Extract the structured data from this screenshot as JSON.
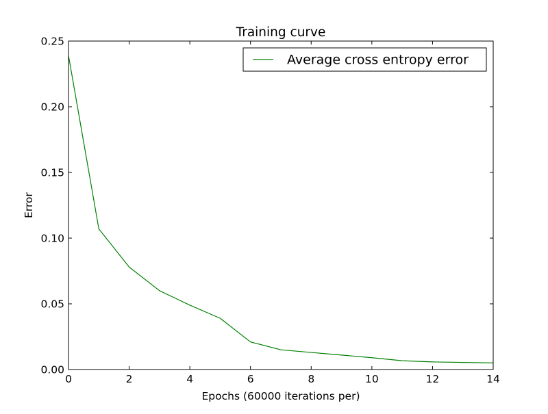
{
  "chart_data": {
    "type": "line",
    "title": "Training curve",
    "xlabel": "Epochs (60000 iterations per)",
    "ylabel": "Error",
    "xlim": [
      0,
      14
    ],
    "ylim": [
      0,
      0.25
    ],
    "grid": false,
    "legend_position": "top-right",
    "x_ticks": [
      0,
      2,
      4,
      6,
      8,
      10,
      12,
      14
    ],
    "x_tick_labels": [
      "0",
      "2",
      "4",
      "6",
      "8",
      "10",
      "12",
      "14"
    ],
    "y_ticks": [
      0,
      0.05,
      0.1,
      0.15,
      0.2,
      0.25
    ],
    "y_tick_labels": [
      "0.00",
      "0.05",
      "0.10",
      "0.15",
      "0.20",
      "0.25"
    ],
    "series": [
      {
        "name": "Average cross entropy error",
        "color": "#008000",
        "x": [
          0,
          1,
          2,
          3,
          4,
          5,
          6,
          7,
          8,
          9,
          10,
          11,
          12,
          13,
          14
        ],
        "y": [
          0.239,
          0.107,
          0.078,
          0.06,
          0.049,
          0.039,
          0.021,
          0.015,
          0.013,
          0.011,
          0.009,
          0.0067,
          0.0058,
          0.0054,
          0.005
        ]
      }
    ]
  }
}
